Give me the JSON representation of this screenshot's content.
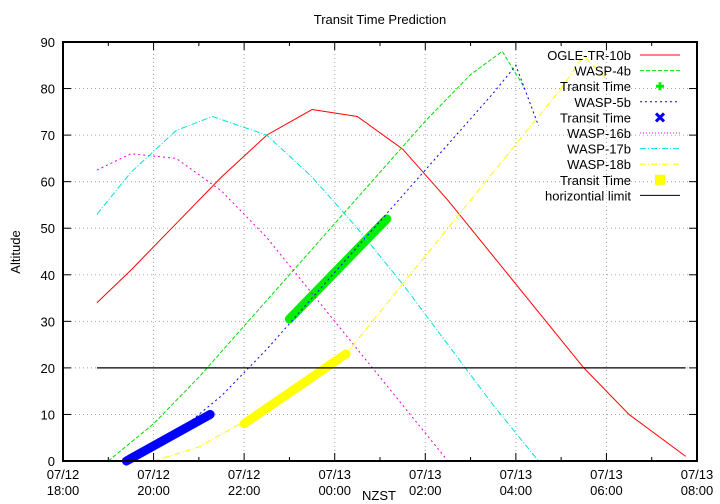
{
  "chart_data": {
    "type": "line",
    "title": "Transit Time Prediction",
    "xlabel": "NZST",
    "ylabel": "Altitude",
    "ylim": [
      0,
      90
    ],
    "yticks": [
      0,
      10,
      20,
      30,
      40,
      50,
      60,
      70,
      80,
      90
    ],
    "xlim_hours_from_0712_1800": [
      0,
      14
    ],
    "xticks": [
      {
        "date": "07/12",
        "time": "18:00",
        "h": 0
      },
      {
        "date": "07/12",
        "time": "20:00",
        "h": 2
      },
      {
        "date": "07/12",
        "time": "22:00",
        "h": 4
      },
      {
        "date": "07/13",
        "time": "00:00",
        "h": 6
      },
      {
        "date": "07/13",
        "time": "02:00",
        "h": 8
      },
      {
        "date": "07/13",
        "time": "04:00",
        "h": 10
      },
      {
        "date": "07/13",
        "time": "06:00",
        "h": 12
      },
      {
        "date": "07/13",
        "time": "08:00",
        "h": 14
      }
    ],
    "grid": true,
    "legend_position": "top-right",
    "series": [
      {
        "name": "OGLE-TR-10b",
        "color": "#ff0000",
        "style": "solid",
        "x": [
          0.75,
          1.5,
          2.5,
          3.5,
          4.5,
          5.5,
          6.5,
          7.5,
          8.5,
          9.5,
          10.5,
          11.5,
          12.5,
          13.75
        ],
        "y": [
          34,
          41,
          51,
          61,
          70,
          75.5,
          74,
          67,
          56,
          44,
          32,
          20,
          10,
          1
        ]
      },
      {
        "name": "WASP-4b",
        "color": "#00dd00",
        "style": "dashed",
        "x": [
          1.0,
          2.0,
          3.0,
          4.0,
          5.0,
          6.0,
          7.0,
          8.0,
          9.0,
          9.7,
          10.2
        ],
        "y": [
          0,
          8,
          18,
          29,
          40,
          51,
          62,
          73,
          83,
          88,
          80
        ]
      },
      {
        "name": "Transit Time",
        "color": "#00ee00",
        "style": "marker",
        "for": "WASP-4b",
        "x": [
          5.0,
          7.15
        ],
        "y": [
          30.5,
          52
        ]
      },
      {
        "name": "WASP-5b",
        "color": "#0000ff",
        "style": "dotted",
        "x": [
          1.6,
          2.5,
          3.5,
          4.5,
          5.5,
          6.5,
          7.5,
          8.5,
          9.5,
          10.0,
          10.5
        ],
        "y": [
          0,
          6,
          14,
          24,
          35,
          46,
          57,
          68,
          79,
          85,
          72
        ]
      },
      {
        "name": "Transit Time",
        "color": "#0000ff",
        "style": "marker",
        "for": "WASP-5b",
        "x": [
          1.4,
          3.25
        ],
        "y": [
          0,
          10
        ]
      },
      {
        "name": "WASP-16b",
        "color": "#ee00ee",
        "style": "dotted",
        "x": [
          0.75,
          1.5,
          2.5,
          3.5,
          4.5,
          5.5,
          6.5,
          7.5,
          8.5
        ],
        "y": [
          62.5,
          66,
          65,
          58,
          48,
          36,
          24,
          12,
          0
        ]
      },
      {
        "name": "WASP-17b",
        "color": "#00e0e0",
        "style": "dash-dot",
        "x": [
          0.75,
          1.5,
          2.5,
          3.3,
          4.5,
          5.5,
          6.5,
          7.5,
          8.5,
          9.5,
          10.5
        ],
        "y": [
          53,
          62,
          71,
          74,
          70,
          61,
          50,
          38,
          25,
          12,
          0
        ]
      },
      {
        "name": "WASP-18b",
        "color": "#ffff00",
        "style": "dash-dot",
        "x": [
          2.0,
          3.0,
          4.0,
          5.0,
          6.25,
          7.0,
          8.0,
          9.0,
          10.0,
          11.0,
          11.5,
          12.0
        ],
        "y": [
          0,
          3,
          8.5,
          15,
          23,
          32,
          44,
          56,
          68,
          80,
          87,
          82
        ]
      },
      {
        "name": "Transit Time",
        "color": "#ffff00",
        "style": "marker",
        "for": "WASP-18b",
        "x": [
          4.0,
          6.25
        ],
        "y": [
          8,
          23
        ]
      },
      {
        "name": "horizontial limit",
        "color": "#000000",
        "style": "solid",
        "x": [
          0.75,
          13.75
        ],
        "y": [
          20,
          20
        ]
      }
    ]
  },
  "legend": [
    {
      "label": "OGLE-TR-10b",
      "color": "#ff0000",
      "kind": "line",
      "dash": ""
    },
    {
      "label": "WASP-4b",
      "color": "#00dd00",
      "kind": "line",
      "dash": "4,2"
    },
    {
      "label": "Transit Time",
      "color": "#00ee00",
      "kind": "plus"
    },
    {
      "label": "WASP-5b",
      "color": "#0000ff",
      "kind": "line",
      "dash": "2,3"
    },
    {
      "label": "Transit Time",
      "color": "#0000ff",
      "kind": "cross"
    },
    {
      "label": "WASP-16b",
      "color": "#ee00ee",
      "kind": "line",
      "dash": "1,2"
    },
    {
      "label": "WASP-17b",
      "color": "#00e0e0",
      "kind": "line",
      "dash": "6,2,1,2"
    },
    {
      "label": "WASP-18b",
      "color": "#ffff00",
      "kind": "line",
      "dash": "6,2,1,2"
    },
    {
      "label": "Transit Time",
      "color": "#ffff00",
      "kind": "square"
    },
    {
      "label": "horizontial limit",
      "color": "#000000",
      "kind": "line",
      "dash": ""
    }
  ]
}
